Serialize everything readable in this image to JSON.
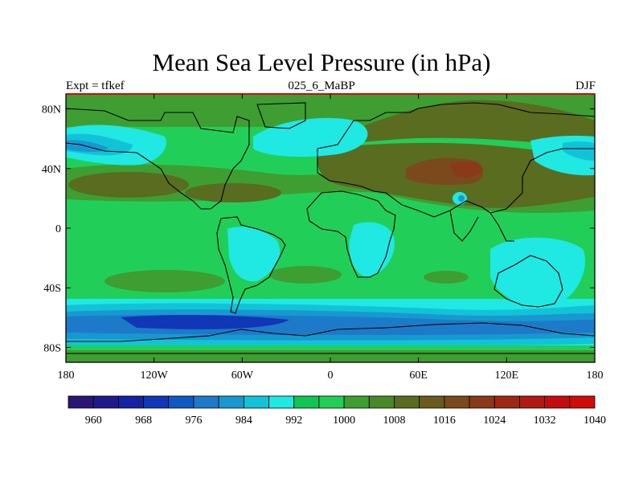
{
  "title": "Mean Sea Level Pressure (in hPa)",
  "left_label": "Expt = tfkef",
  "center_label": "025_6_MaBP",
  "right_label": "DJF",
  "map": {
    "lon_ticks": [
      "180",
      "120W",
      "60W",
      "0",
      "60E",
      "120E",
      "180"
    ],
    "lat_ticks": [
      "80N",
      "40N",
      "0",
      "40S",
      "80S"
    ]
  },
  "colorbar": {
    "colors": [
      "#2b1575",
      "#1e1a8c",
      "#1523a3",
      "#1136b6",
      "#0f59c4",
      "#1d7ac9",
      "#1898d0",
      "#12c3d8",
      "#20e8e3",
      "#0fc553",
      "#21cf58",
      "#3e9e32",
      "#4c8728",
      "#596c20",
      "#6a5a1e",
      "#7a4a1c",
      "#8a3a18",
      "#9e2815",
      "#b11a14",
      "#c40c10",
      "#d10a0a"
    ],
    "labels": [
      "960",
      "968",
      "976",
      "984",
      "992",
      "1000",
      "1008",
      "1016",
      "1024",
      "1032",
      "1040"
    ]
  }
}
